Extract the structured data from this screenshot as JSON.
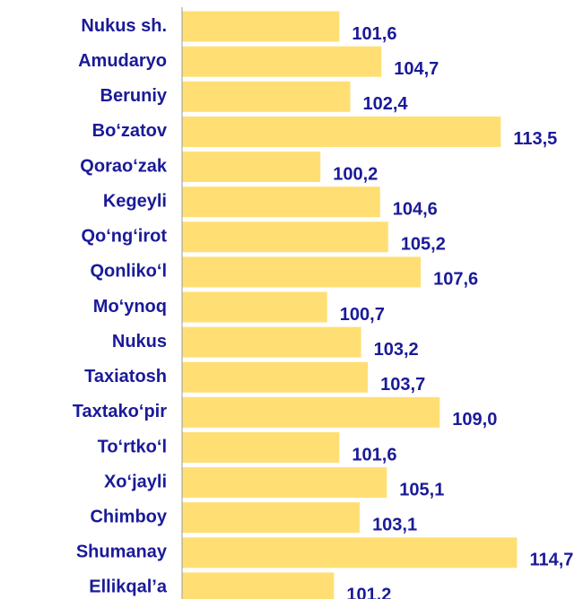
{
  "chart_data": {
    "type": "hbar",
    "categories": [
      "Nukus sh.",
      "Amudaryo",
      "Beruniy",
      "Bo‘zatov",
      "Qorao‘zak",
      "Kegeyli",
      "Qo‘ng‘irot",
      "Qonliko‘l",
      "Mo‘ynoq",
      "Nukus",
      "Taxiatosh",
      "Taxtako‘pir",
      "To‘rtko‘l",
      "Xo‘jayli",
      "Chimboy",
      "Shumanay",
      "Ellikqal’a"
    ],
    "values": [
      101.6,
      104.7,
      102.4,
      113.5,
      100.2,
      104.6,
      105.2,
      107.6,
      100.7,
      103.2,
      103.7,
      109.0,
      101.6,
      105.1,
      103.1,
      114.7,
      101.2
    ],
    "value_labels": [
      "101,6",
      "104,7",
      "102,4",
      "113,5",
      "100,2",
      "104,6",
      "105,2",
      "107,6",
      "100,7",
      "103,2",
      "103,7",
      "109,0",
      "101,6",
      "105,1",
      "103,1",
      "114,7",
      "101,2"
    ],
    "color": "#ffdf73",
    "xlim": [
      90,
      115
    ]
  }
}
